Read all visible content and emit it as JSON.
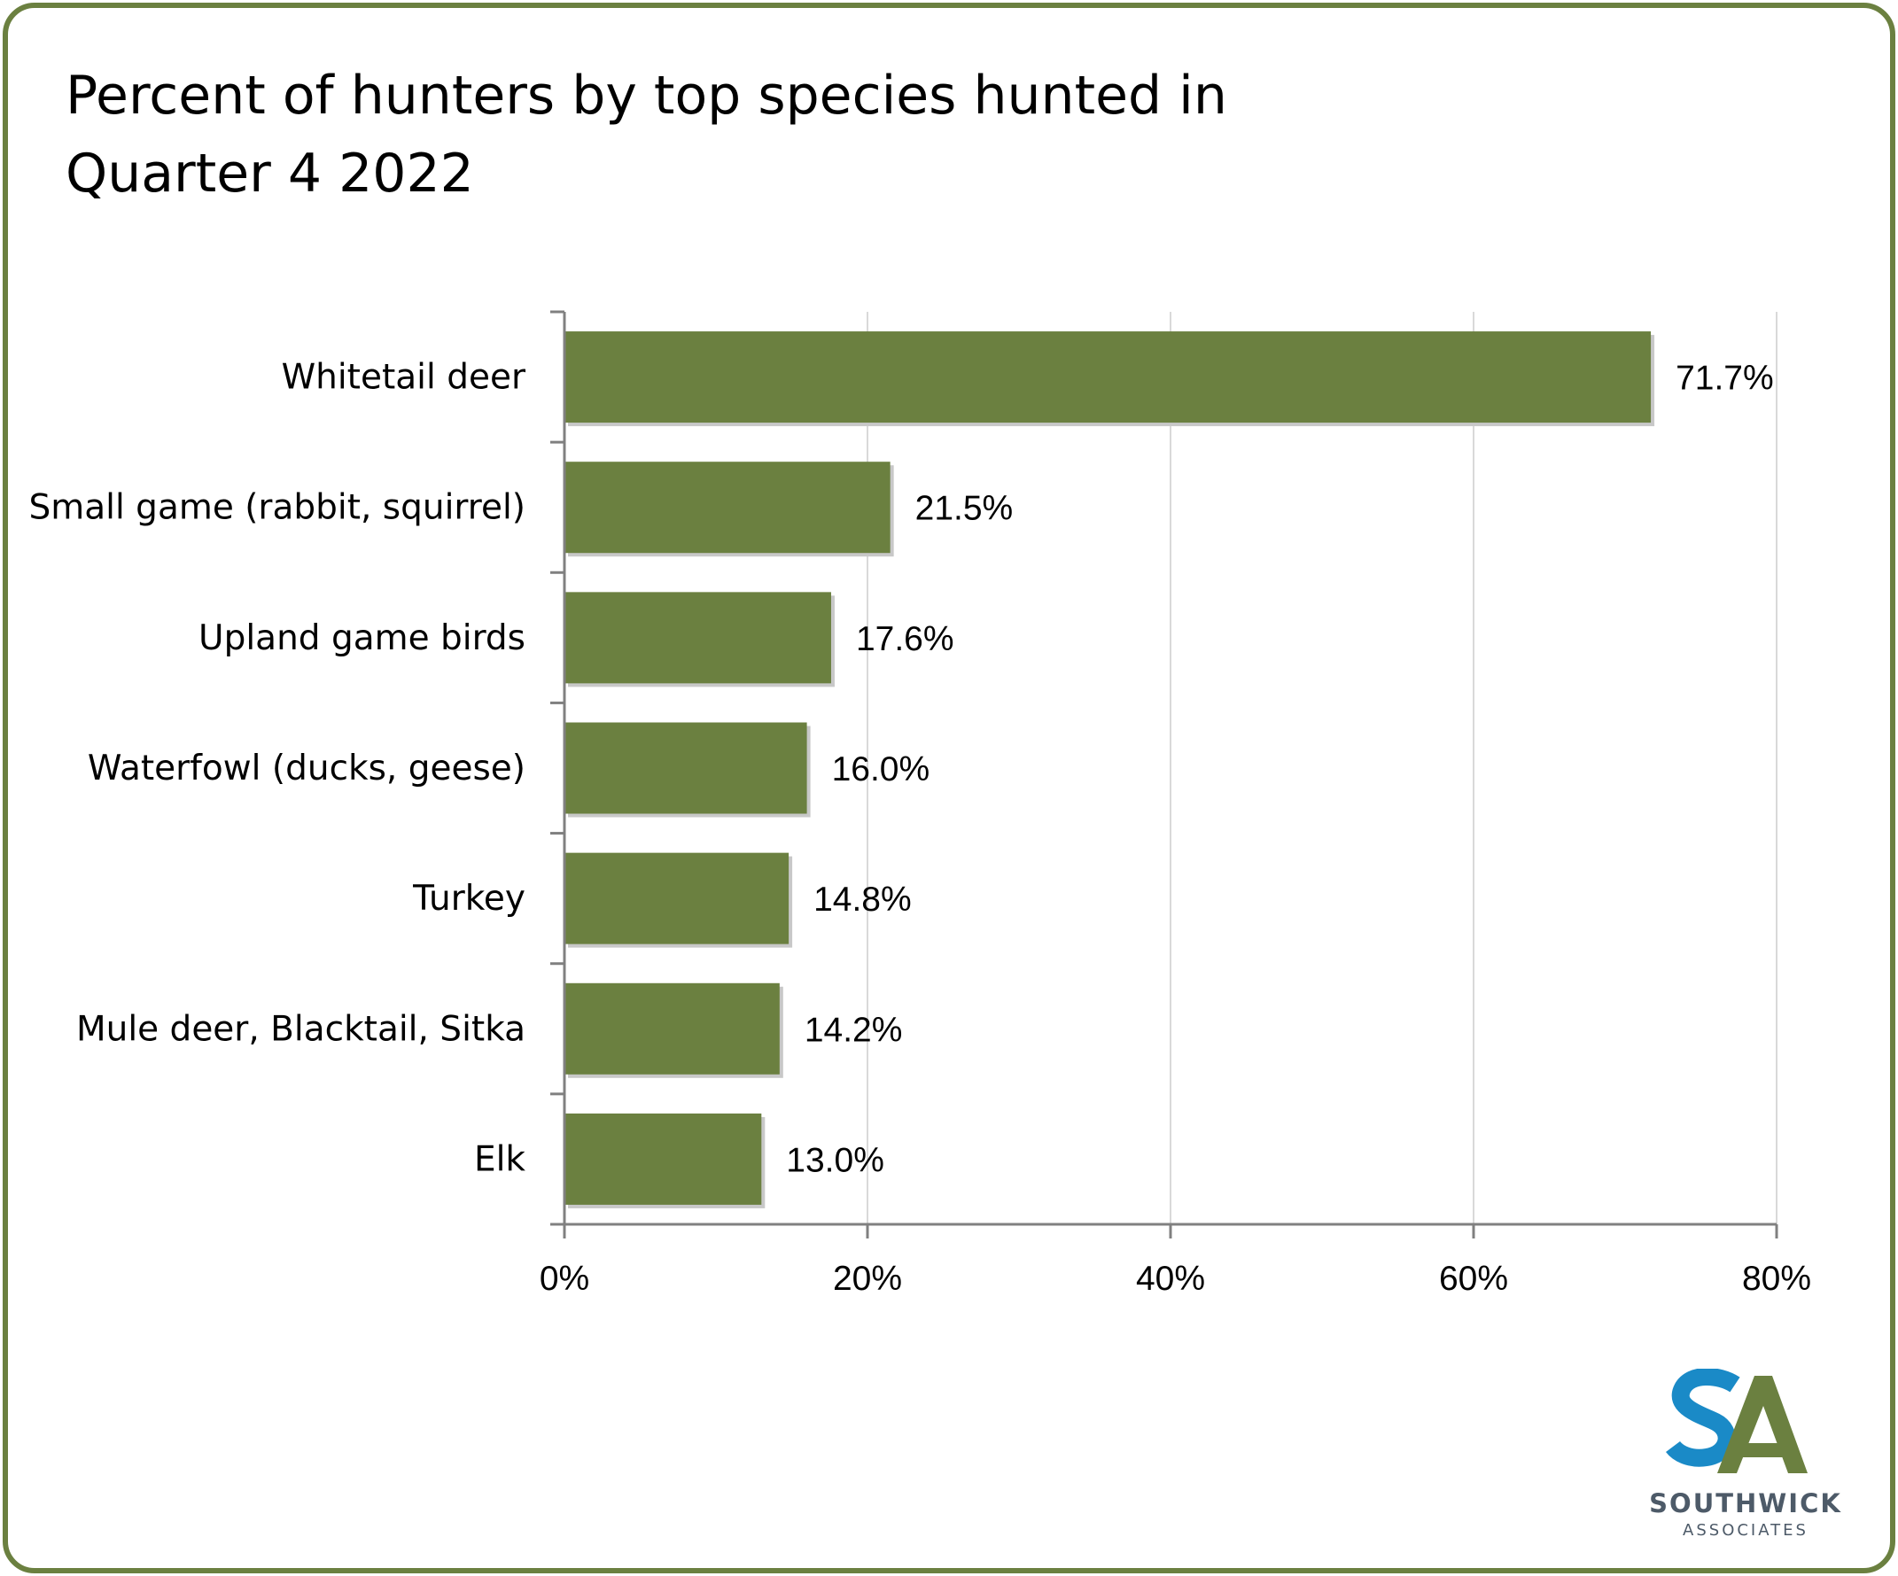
{
  "chart_data": {
    "type": "bar",
    "orientation": "horizontal",
    "title": "Percent of hunters by top species hunted in Quarter 4 2022",
    "categories": [
      "Whitetail deer",
      "Small game (rabbit, squirrel)",
      "Upland game birds",
      "Waterfowl (ducks, geese)",
      "Turkey",
      "Mule deer, Blacktail, Sitka",
      "Elk"
    ],
    "values": [
      71.7,
      21.5,
      17.6,
      16.0,
      14.8,
      14.2,
      13.0
    ],
    "data_labels": [
      "71.7%",
      "21.5%",
      "17.6%",
      "16.0%",
      "14.8%",
      "14.2%",
      "13.0%"
    ],
    "xlim": [
      0,
      80
    ],
    "x_ticks": [
      0,
      20,
      40,
      60,
      80
    ],
    "x_tick_labels": [
      "0%",
      "20%",
      "40%",
      "60%",
      "80%"
    ],
    "xlabel": "",
    "ylabel": "",
    "grid": "vertical",
    "legend": "none",
    "bar_color": "#6b8040"
  },
  "logo": {
    "name": "SOUTHWICK",
    "sub": "ASSOCIATES",
    "lettering": "SA",
    "colors": {
      "blue": "#1a8ac7",
      "green": "#6b8040",
      "text": "#4d5a68"
    }
  },
  "colors": {
    "border": "#6b8040",
    "gridline": "#d9d9d9",
    "axis": "#808080"
  }
}
